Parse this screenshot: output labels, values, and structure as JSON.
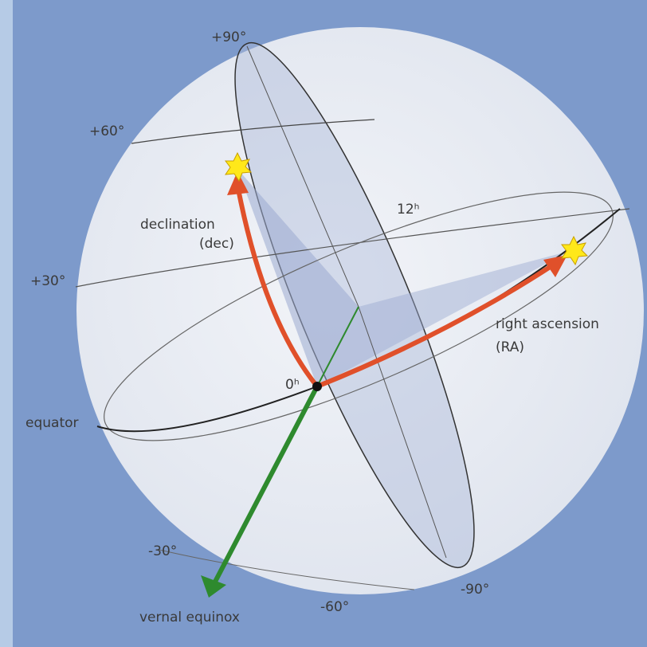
{
  "labels": {
    "plus90": "+90°",
    "plus60": "+60°",
    "plus30": "+30°",
    "minus30": "-30°",
    "minus60": "-60°",
    "minus90": "-90°",
    "h12": "12ʰ",
    "h0": "0ʰ",
    "declination": [
      "declination",
      "(dec)"
    ],
    "right_ascension": [
      "right ascension",
      "(RA)"
    ],
    "equator": "equator",
    "vernal_equinox": "vernal equinox"
  }
}
